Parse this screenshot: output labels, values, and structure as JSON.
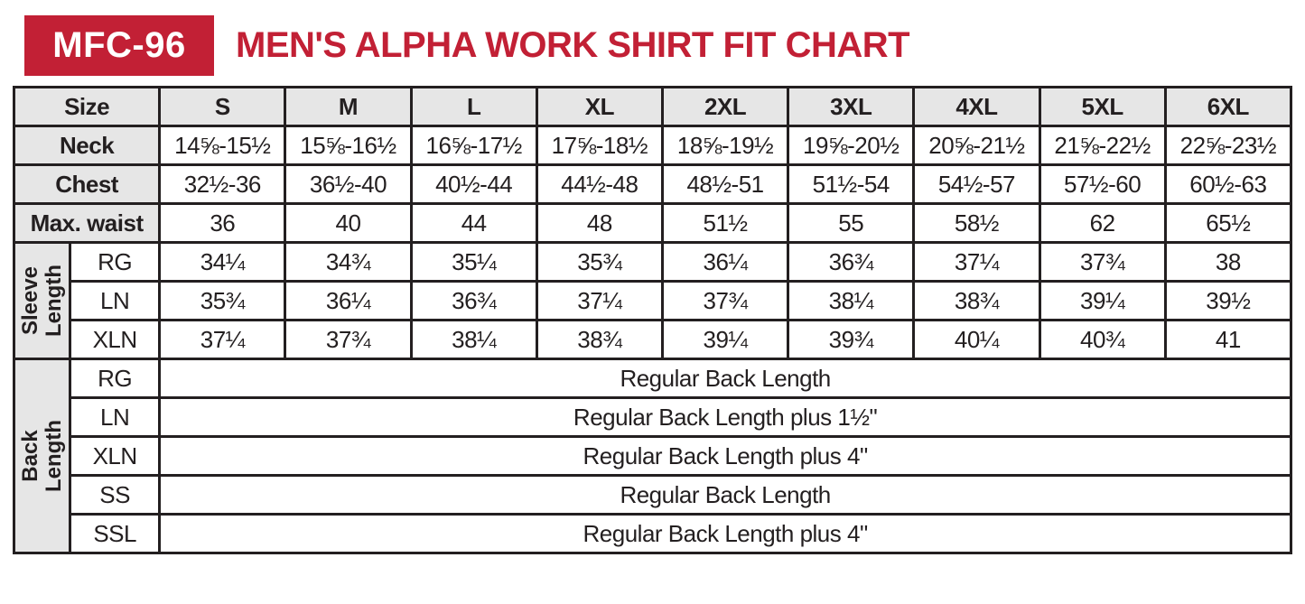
{
  "header": {
    "badge": "MFC-96",
    "title": "MEN'S ALPHA WORK SHIRT FIT CHART"
  },
  "colors": {
    "accent_red": "#C22035",
    "label_gray": "#E6E6E6",
    "border_ink": "#231F20"
  },
  "chart_data": {
    "type": "table",
    "title": "MFC-96 MEN'S ALPHA WORK SHIRT FIT CHART",
    "size_header_label": "Size",
    "sizes": [
      "S",
      "M",
      "L",
      "XL",
      "2XL",
      "3XL",
      "4XL",
      "5XL",
      "6XL"
    ],
    "measurement_rows": [
      {
        "label": "Neck",
        "values": [
          "14⅝-15½",
          "15⅝-16½",
          "16⅝-17½",
          "17⅝-18½",
          "18⅝-19½",
          "19⅝-20½",
          "20⅝-21½",
          "21⅝-22½",
          "22⅝-23½"
        ]
      },
      {
        "label": "Chest",
        "values": [
          "32½-36",
          "36½-40",
          "40½-44",
          "44½-48",
          "48½-51",
          "51½-54",
          "54½-57",
          "57½-60",
          "60½-63"
        ]
      },
      {
        "label": "Max. waist",
        "values": [
          "36",
          "40",
          "44",
          "48",
          "51½",
          "55",
          "58½",
          "62",
          "65½"
        ]
      }
    ],
    "sleeve_length": {
      "label": "Sleeve\nLength",
      "rows": [
        {
          "label": "RG",
          "values": [
            "34¼",
            "34¾",
            "35¼",
            "35¾",
            "36¼",
            "36¾",
            "37¼",
            "37¾",
            "38"
          ]
        },
        {
          "label": "LN",
          "values": [
            "35¾",
            "36¼",
            "36¾",
            "37¼",
            "37¾",
            "38¼",
            "38¾",
            "39¼",
            "39½"
          ]
        },
        {
          "label": "XLN",
          "values": [
            "37¼",
            "37¾",
            "38¼",
            "38¾",
            "39¼",
            "39¾",
            "40¼",
            "40¾",
            "41"
          ]
        }
      ]
    },
    "back_length": {
      "label": "Back Length",
      "rows": [
        {
          "label": "RG",
          "value": "Regular Back Length"
        },
        {
          "label": "LN",
          "value": "Regular Back Length plus 1½\""
        },
        {
          "label": "XLN",
          "value": "Regular Back Length plus 4\""
        },
        {
          "label": "SS",
          "value": "Regular Back Length"
        },
        {
          "label": "SSL",
          "value": "Regular Back Length plus 4\""
        }
      ]
    }
  }
}
